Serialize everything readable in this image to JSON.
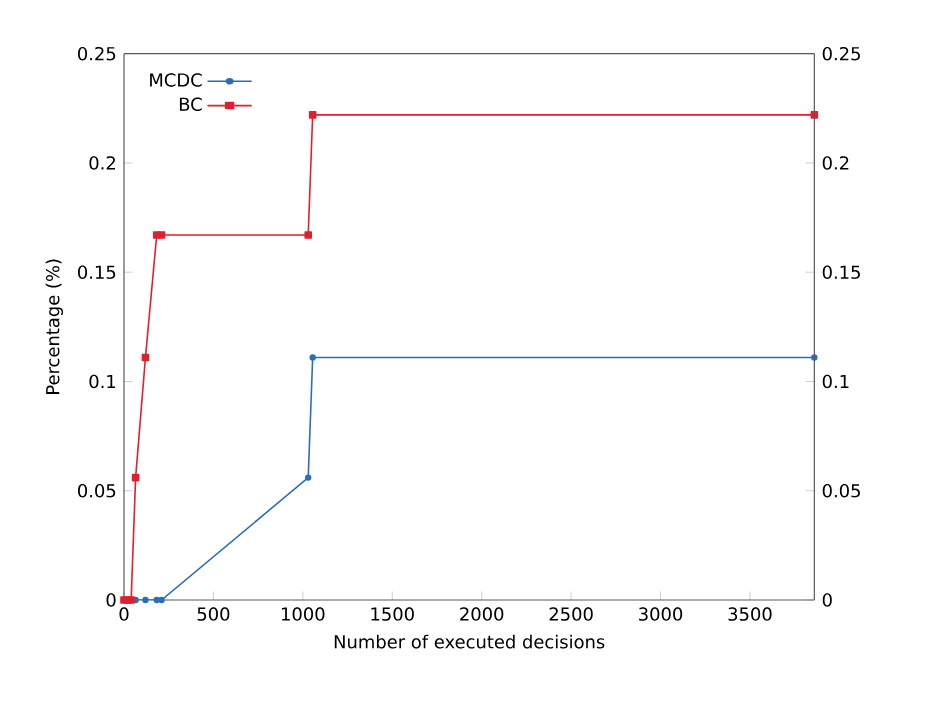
{
  "chart_data": {
    "type": "line",
    "xlabel": "Number of executed decisions",
    "ylabel": "Percentage (%)",
    "xlim": [
      0,
      3860
    ],
    "xticks": [
      0,
      500,
      1000,
      1500,
      2000,
      2500,
      3000,
      3500
    ],
    "ylim": [
      0,
      0.25
    ],
    "yticks": [
      0,
      0.05,
      0.1,
      0.15,
      0.2,
      0.25
    ],
    "y2lim": [
      0,
      0.25
    ],
    "y2ticks": [
      0,
      0.05,
      0.1,
      0.15,
      0.2,
      0.25
    ],
    "legend": "top left",
    "grid": false,
    "line_style": "solid",
    "series": [
      {
        "name": "MCDC",
        "color": "#2a6ebb",
        "marker": "circle",
        "x": [
          0,
          20,
          40,
          65,
          120,
          183,
          210,
          1030,
          1055,
          3860
        ],
        "values": [
          0,
          0,
          0,
          0,
          0,
          0,
          0,
          0.056,
          0.111,
          0.111
        ]
      },
      {
        "name": "BC",
        "color": "#e0202e",
        "marker": "square",
        "x": [
          0,
          20,
          40,
          65,
          120,
          183,
          210,
          1030,
          1055,
          3860
        ],
        "values": [
          0,
          0,
          0,
          0.056,
          0.111,
          0.167,
          0.167,
          0.167,
          0.222,
          0.222
        ]
      }
    ]
  }
}
